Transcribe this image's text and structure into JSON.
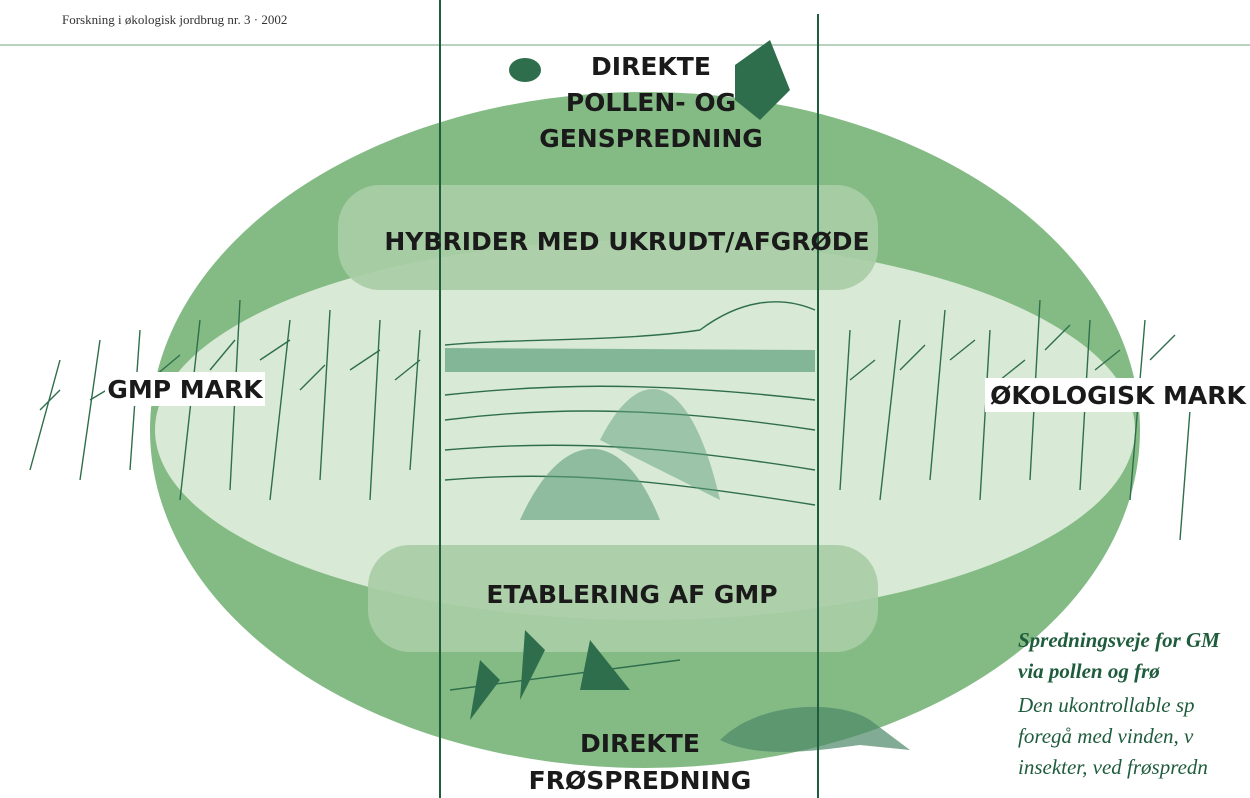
{
  "header": {
    "title": "Forskning i økologisk jordbrug nr. 3 · 2002"
  },
  "labels": {
    "pollen": [
      "DIREKTE",
      "POLLEN- OG",
      "GENSPREDNING"
    ],
    "hybrids": "HYBRIDER MED UKRUDT/AFGRØDE",
    "gmp_field": "GMP MARK",
    "organic_field": "ØKOLOGISK MARK",
    "establishment": "ETABLERING AF GMP",
    "seed": [
      "DIREKTE",
      "FRØSPREDNING"
    ]
  },
  "caption": {
    "title": [
      "Spredningsveje for GM",
      "via pollen og frø"
    ],
    "body": [
      "Den ukontrollable sp",
      "foregå med vinden, v",
      "insekter, ved frøspredn"
    ]
  }
}
